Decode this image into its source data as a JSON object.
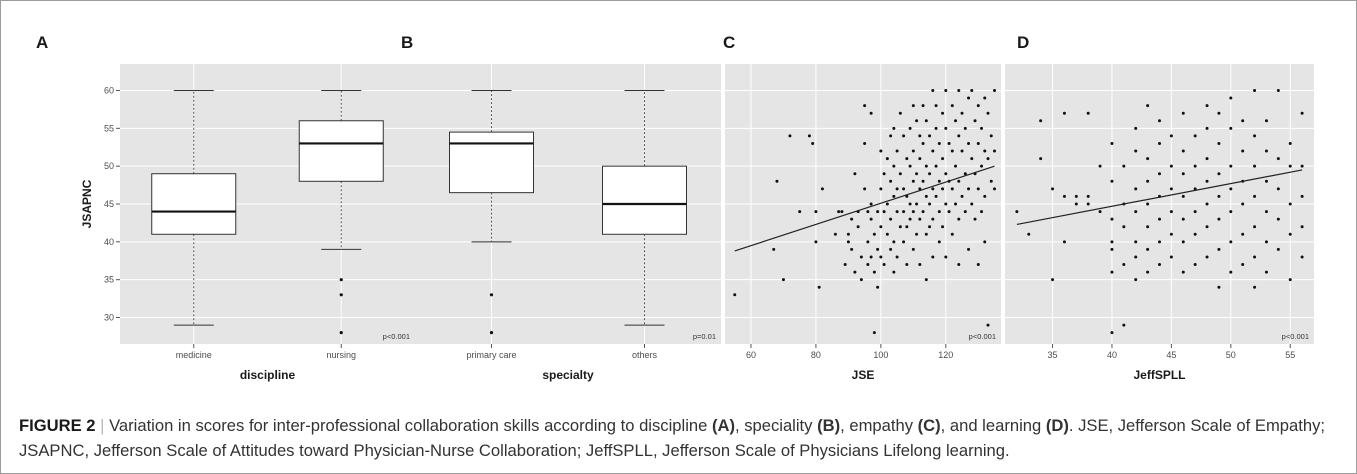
{
  "figure": {
    "caption_label": "FIGURE 2",
    "caption_parts": [
      {
        "t": "Variation in scores for inter-professional collaboration skills according to discipline ",
        "b": false
      },
      {
        "t": "(A)",
        "b": true
      },
      {
        "t": ", speciality ",
        "b": false
      },
      {
        "t": "(B)",
        "b": true
      },
      {
        "t": ", empathy ",
        "b": false
      },
      {
        "t": "(C)",
        "b": true
      },
      {
        "t": ", and learning ",
        "b": false
      },
      {
        "t": "(D)",
        "b": true
      },
      {
        "t": ". JSE, Jefferson Scale of Empathy; JSAPNC, Jefferson Scale of Attitudes toward Physician-Nurse Collaboration; JeffSPLL, Jefferson Scale of Physicians Lifelong learning.",
        "b": false
      }
    ]
  },
  "chart_data": [
    {
      "type": "box",
      "panel_label": "A",
      "xlabel": "discipline",
      "ylabel": "JSAPNC",
      "ylim": [
        26.5,
        63.5
      ],
      "yticks": [
        30,
        35,
        40,
        45,
        50,
        55,
        60
      ],
      "annotation": "p<0.001",
      "categories": [
        "medicine",
        "nursing"
      ],
      "boxes": [
        {
          "category": "medicine",
          "min": 29,
          "q1": 41,
          "median": 44,
          "q3": 49,
          "max": 60,
          "outliers": []
        },
        {
          "category": "nursing",
          "min": 39,
          "q1": 48,
          "median": 53,
          "q3": 56,
          "max": 60,
          "outliers": [
            35,
            33,
            28
          ]
        }
      ]
    },
    {
      "type": "box",
      "panel_label": "B",
      "xlabel": "specialty",
      "ylabel": "",
      "ylim": [
        26.5,
        63.5
      ],
      "annotation": "p=0.01",
      "categories": [
        "primary care",
        "others"
      ],
      "boxes": [
        {
          "category": "primary care",
          "min": 40,
          "q1": 46.5,
          "median": 53,
          "q3": 54.5,
          "max": 60,
          "outliers": [
            33,
            28
          ]
        },
        {
          "category": "others",
          "min": 29,
          "q1": 41,
          "median": 45,
          "q3": 50,
          "max": 60,
          "outliers": []
        }
      ]
    },
    {
      "type": "scatter",
      "panel_label": "C",
      "xlabel": "JSE",
      "ylabel": "",
      "xlim": [
        52,
        137
      ],
      "ylim": [
        26.5,
        63.5
      ],
      "xticks": [
        60,
        80,
        100,
        120
      ],
      "annotation": "p<0.001",
      "trend": {
        "x": [
          55,
          135
        ],
        "y": [
          38.8,
          50
        ]
      },
      "points": [
        [
          55,
          33
        ],
        [
          67,
          39
        ],
        [
          68,
          48
        ],
        [
          70,
          35
        ],
        [
          72,
          54
        ],
        [
          75,
          44
        ],
        [
          78,
          54
        ],
        [
          79,
          53
        ],
        [
          80,
          44
        ],
        [
          80,
          40
        ],
        [
          81,
          34
        ],
        [
          82,
          47
        ],
        [
          86,
          41
        ],
        [
          87,
          44
        ],
        [
          88,
          44
        ],
        [
          89,
          37
        ],
        [
          90,
          41
        ],
        [
          90,
          40
        ],
        [
          91,
          39
        ],
        [
          91,
          43
        ],
        [
          92,
          49
        ],
        [
          92,
          36
        ],
        [
          93,
          44
        ],
        [
          93,
          42
        ],
        [
          94,
          38
        ],
        [
          94,
          35
        ],
        [
          95,
          53
        ],
        [
          95,
          58
        ],
        [
          95,
          47
        ],
        [
          96,
          44
        ],
        [
          96,
          40
        ],
        [
          96,
          37
        ],
        [
          97,
          57
        ],
        [
          97,
          45
        ],
        [
          97,
          43
        ],
        [
          97,
          38
        ],
        [
          98,
          28
        ],
        [
          98,
          41
        ],
        [
          98,
          36
        ],
        [
          99,
          44
        ],
        [
          99,
          39
        ],
        [
          99,
          34
        ],
        [
          100,
          47
        ],
        [
          100,
          52
        ],
        [
          100,
          42
        ],
        [
          100,
          38
        ],
        [
          101,
          49
        ],
        [
          101,
          44
        ],
        [
          101,
          37
        ],
        [
          102,
          51
        ],
        [
          102,
          45
        ],
        [
          102,
          41
        ],
        [
          103,
          54
        ],
        [
          103,
          48
        ],
        [
          103,
          43
        ],
        [
          103,
          39
        ],
        [
          104,
          55
        ],
        [
          104,
          50
        ],
        [
          104,
          46
        ],
        [
          104,
          40
        ],
        [
          104,
          36
        ],
        [
          105,
          52
        ],
        [
          105,
          47
        ],
        [
          105,
          44
        ],
        [
          105,
          38
        ],
        [
          106,
          57
        ],
        [
          106,
          49
        ],
        [
          106,
          42
        ],
        [
          107,
          54
        ],
        [
          107,
          47
        ],
        [
          107,
          44
        ],
        [
          107,
          40
        ],
        [
          108,
          51
        ],
        [
          108,
          46
        ],
        [
          108,
          42
        ],
        [
          108,
          37
        ],
        [
          109,
          55
        ],
        [
          109,
          50
        ],
        [
          109,
          45
        ],
        [
          109,
          43
        ],
        [
          110,
          58
        ],
        [
          110,
          52
        ],
        [
          110,
          48
        ],
        [
          110,
          44
        ],
        [
          110,
          39
        ],
        [
          111,
          56
        ],
        [
          111,
          49
        ],
        [
          111,
          45
        ],
        [
          111,
          41
        ],
        [
          112,
          54
        ],
        [
          112,
          51
        ],
        [
          112,
          47
        ],
        [
          112,
          43
        ],
        [
          112,
          37
        ],
        [
          113,
          58
        ],
        [
          113,
          53
        ],
        [
          113,
          48
        ],
        [
          113,
          44
        ],
        [
          114,
          56
        ],
        [
          114,
          50
        ],
        [
          114,
          46
        ],
        [
          114,
          41
        ],
        [
          114,
          35
        ],
        [
          115,
          54
        ],
        [
          115,
          49
        ],
        [
          115,
          45
        ],
        [
          115,
          42
        ],
        [
          116,
          60
        ],
        [
          116,
          52
        ],
        [
          116,
          47
        ],
        [
          116,
          43
        ],
        [
          116,
          38
        ],
        [
          117,
          58
        ],
        [
          117,
          55
        ],
        [
          117,
          50
        ],
        [
          117,
          46
        ],
        [
          118,
          53
        ],
        [
          118,
          48
        ],
        [
          118,
          44
        ],
        [
          118,
          40
        ],
        [
          119,
          57
        ],
        [
          119,
          51
        ],
        [
          119,
          47
        ],
        [
          119,
          42
        ],
        [
          120,
          60
        ],
        [
          120,
          55
        ],
        [
          120,
          49
        ],
        [
          120,
          45
        ],
        [
          120,
          38
        ],
        [
          121,
          53
        ],
        [
          121,
          48
        ],
        [
          121,
          44
        ],
        [
          122,
          58
        ],
        [
          122,
          52
        ],
        [
          122,
          47
        ],
        [
          122,
          41
        ],
        [
          123,
          56
        ],
        [
          123,
          50
        ],
        [
          123,
          45
        ],
        [
          124,
          60
        ],
        [
          124,
          54
        ],
        [
          124,
          48
        ],
        [
          124,
          43
        ],
        [
          124,
          37
        ],
        [
          125,
          57
        ],
        [
          125,
          52
        ],
        [
          125,
          46
        ],
        [
          126,
          55
        ],
        [
          126,
          49
        ],
        [
          126,
          44
        ],
        [
          127,
          59
        ],
        [
          127,
          53
        ],
        [
          127,
          47
        ],
        [
          127,
          39
        ],
        [
          128,
          60
        ],
        [
          128,
          51
        ],
        [
          128,
          45
        ],
        [
          129,
          56
        ],
        [
          129,
          49
        ],
        [
          129,
          43
        ],
        [
          130,
          58
        ],
        [
          130,
          53
        ],
        [
          130,
          47
        ],
        [
          130,
          37
        ],
        [
          131,
          55
        ],
        [
          131,
          50
        ],
        [
          131,
          44
        ],
        [
          132,
          59
        ],
        [
          132,
          52
        ],
        [
          132,
          46
        ],
        [
          132,
          40
        ],
        [
          133,
          57
        ],
        [
          133,
          51
        ],
        [
          133,
          29
        ],
        [
          134,
          54
        ],
        [
          134,
          48
        ],
        [
          135,
          60
        ],
        [
          135,
          52
        ],
        [
          135,
          47
        ]
      ]
    },
    {
      "type": "scatter",
      "panel_label": "D",
      "xlabel": "JeffSPLL",
      "ylabel": "",
      "xlim": [
        31,
        57
      ],
      "ylim": [
        26.5,
        63.5
      ],
      "xticks": [
        35,
        40,
        45,
        50,
        55
      ],
      "annotation": "p<0.001",
      "trend": {
        "x": [
          32,
          56
        ],
        "y": [
          42.3,
          49.5
        ]
      },
      "points": [
        [
          32,
          44
        ],
        [
          33,
          41
        ],
        [
          34,
          56
        ],
        [
          34,
          51
        ],
        [
          35,
          35
        ],
        [
          35,
          47
        ],
        [
          36,
          40
        ],
        [
          36,
          46
        ],
        [
          36,
          57
        ],
        [
          37,
          46
        ],
        [
          37,
          45
        ],
        [
          38,
          45
        ],
        [
          38,
          57
        ],
        [
          38,
          46
        ],
        [
          39,
          50
        ],
        [
          39,
          44
        ],
        [
          40,
          40
        ],
        [
          40,
          28
        ],
        [
          40,
          36
        ],
        [
          40,
          39
        ],
        [
          40,
          43
        ],
        [
          40,
          48
        ],
        [
          40,
          53
        ],
        [
          41,
          29
        ],
        [
          41,
          37
        ],
        [
          41,
          42
        ],
        [
          41,
          45
        ],
        [
          41,
          50
        ],
        [
          42,
          35
        ],
        [
          42,
          38
        ],
        [
          42,
          40
        ],
        [
          42,
          44
        ],
        [
          42,
          47
        ],
        [
          42,
          52
        ],
        [
          42,
          55
        ],
        [
          43,
          36
        ],
        [
          43,
          39
        ],
        [
          43,
          42
        ],
        [
          43,
          45
        ],
        [
          43,
          48
        ],
        [
          43,
          51
        ],
        [
          43,
          58
        ],
        [
          44,
          37
        ],
        [
          44,
          40
        ],
        [
          44,
          43
        ],
        [
          44,
          46
        ],
        [
          44,
          49
        ],
        [
          44,
          53
        ],
        [
          44,
          56
        ],
        [
          45,
          38
        ],
        [
          45,
          41
        ],
        [
          45,
          44
        ],
        [
          45,
          47
        ],
        [
          45,
          50
        ],
        [
          45,
          54
        ],
        [
          46,
          36
        ],
        [
          46,
          40
        ],
        [
          46,
          43
        ],
        [
          46,
          46
        ],
        [
          46,
          49
        ],
        [
          46,
          52
        ],
        [
          46,
          57
        ],
        [
          47,
          37
        ],
        [
          47,
          41
        ],
        [
          47,
          44
        ],
        [
          47,
          47
        ],
        [
          47,
          50
        ],
        [
          47,
          54
        ],
        [
          48,
          38
        ],
        [
          48,
          42
        ],
        [
          48,
          45
        ],
        [
          48,
          48
        ],
        [
          48,
          51
        ],
        [
          48,
          55
        ],
        [
          48,
          58
        ],
        [
          49,
          34
        ],
        [
          49,
          39
        ],
        [
          49,
          43
        ],
        [
          49,
          46
        ],
        [
          49,
          49
        ],
        [
          49,
          53
        ],
        [
          49,
          57
        ],
        [
          50,
          36
        ],
        [
          50,
          40
        ],
        [
          50,
          44
        ],
        [
          50,
          47
        ],
        [
          50,
          50
        ],
        [
          50,
          55
        ],
        [
          50,
          59
        ],
        [
          51,
          37
        ],
        [
          51,
          41
        ],
        [
          51,
          45
        ],
        [
          51,
          48
        ],
        [
          51,
          52
        ],
        [
          51,
          56
        ],
        [
          52,
          34
        ],
        [
          52,
          38
        ],
        [
          52,
          42
        ],
        [
          52,
          46
        ],
        [
          52,
          50
        ],
        [
          52,
          54
        ],
        [
          52,
          60
        ],
        [
          53,
          36
        ],
        [
          53,
          40
        ],
        [
          53,
          44
        ],
        [
          53,
          48
        ],
        [
          53,
          52
        ],
        [
          53,
          56
        ],
        [
          54,
          39
        ],
        [
          54,
          43
        ],
        [
          54,
          47
        ],
        [
          54,
          51
        ],
        [
          54,
          60
        ],
        [
          55,
          35
        ],
        [
          55,
          41
        ],
        [
          55,
          45
        ],
        [
          55,
          50
        ],
        [
          55,
          53
        ],
        [
          56,
          38
        ],
        [
          56,
          42
        ],
        [
          56,
          46
        ],
        [
          56,
          50
        ],
        [
          56,
          57
        ]
      ]
    }
  ]
}
